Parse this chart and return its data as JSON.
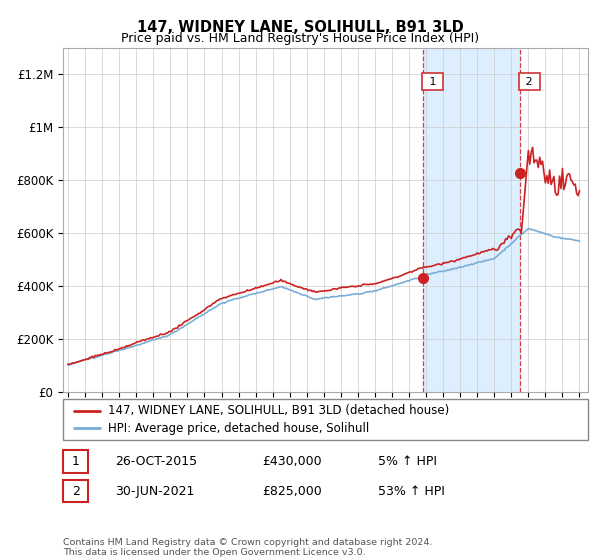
{
  "title": "147, WIDNEY LANE, SOLIHULL, B91 3LD",
  "subtitle": "Price paid vs. HM Land Registry's House Price Index (HPI)",
  "ylabel_ticks": [
    "£0",
    "£200K",
    "£400K",
    "£600K",
    "£800K",
    "£1M",
    "£1.2M"
  ],
  "ytick_values": [
    0,
    200000,
    400000,
    600000,
    800000,
    1000000,
    1200000
  ],
  "ylim": [
    0,
    1300000
  ],
  "xlim_start": 1994.7,
  "xlim_end": 2025.5,
  "hpi_color": "#7aaed6",
  "price_color": "#cc2222",
  "shaded_color": "#ddeeff",
  "marker1_date": 2015.82,
  "marker1_price": 430000,
  "marker2_date": 2021.5,
  "marker2_price": 825000,
  "legend_label1": "147, WIDNEY LANE, SOLIHULL, B91 3LD (detached house)",
  "legend_label2": "HPI: Average price, detached house, Solihull",
  "note1_date": "26-OCT-2015",
  "note1_price": "£430,000",
  "note1_pct": "5% ↑ HPI",
  "note2_date": "30-JUN-2021",
  "note2_price": "£825,000",
  "note2_pct": "53% ↑ HPI",
  "footer": "Contains HM Land Registry data © Crown copyright and database right 2024.\nThis data is licensed under the Open Government Licence v3.0."
}
